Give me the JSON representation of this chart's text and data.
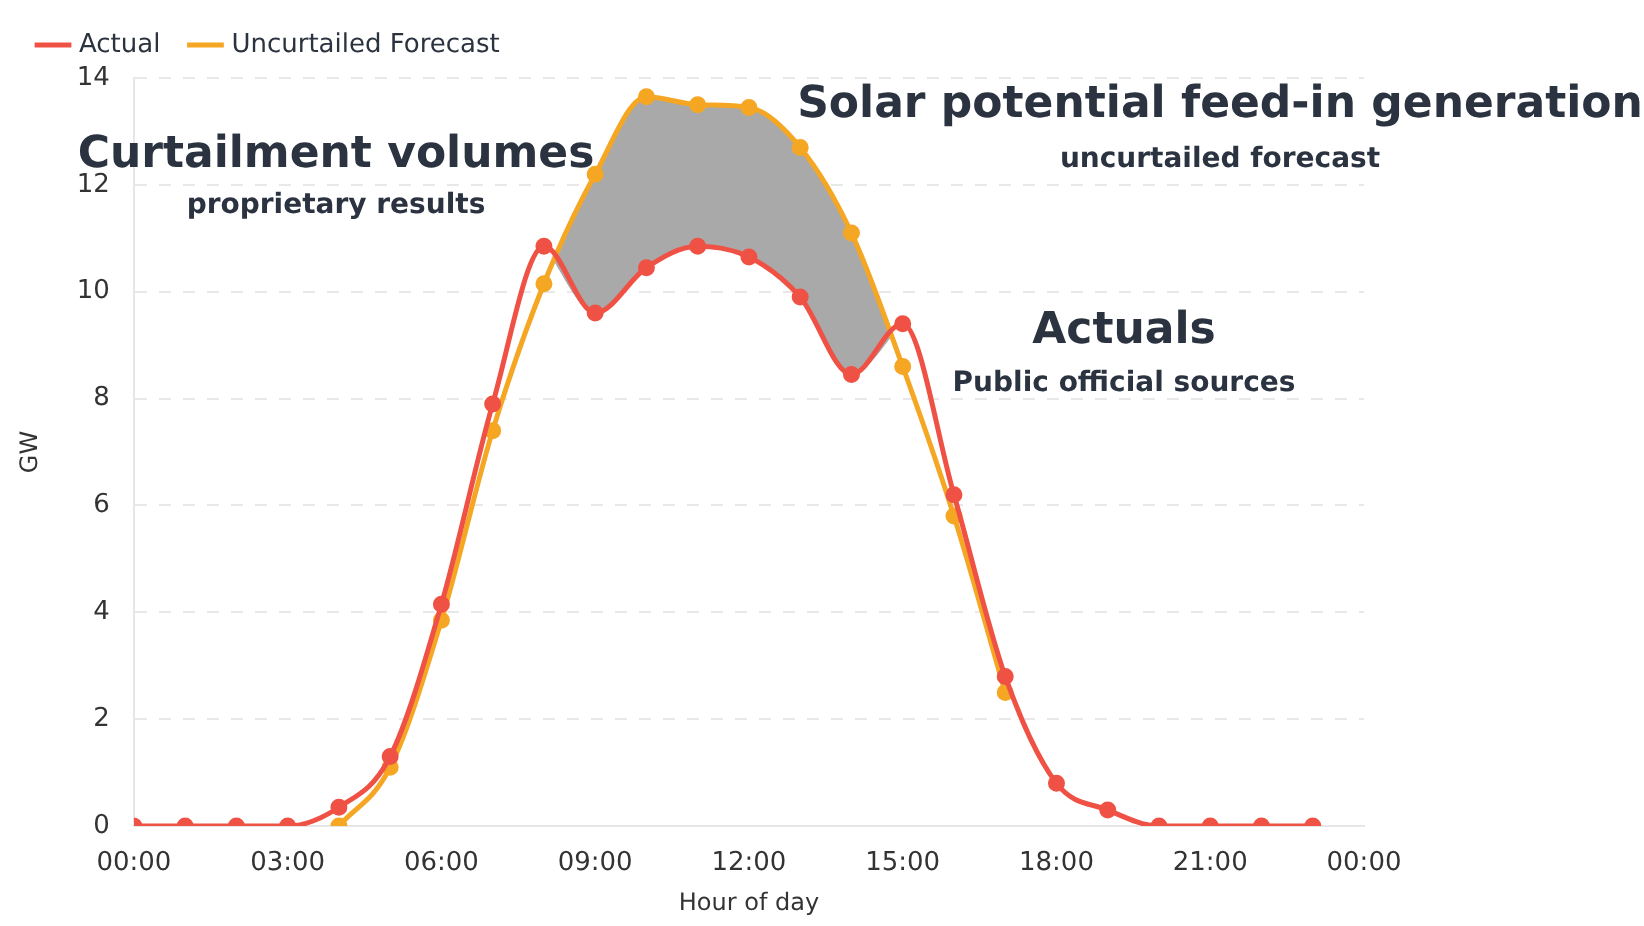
{
  "chart_data": {
    "type": "line",
    "xlabel": "Hour of day",
    "ylabel": "GW",
    "xlim": [
      0,
      24
    ],
    "xticks": [
      {
        "value": 0,
        "label": "00:00"
      },
      {
        "value": 3,
        "label": "03:00"
      },
      {
        "value": 6,
        "label": "06:00"
      },
      {
        "value": 9,
        "label": "09:00"
      },
      {
        "value": 12,
        "label": "12:00"
      },
      {
        "value": 15,
        "label": "15:00"
      },
      {
        "value": 18,
        "label": "18:00"
      },
      {
        "value": 21,
        "label": "21:00"
      },
      {
        "value": 24,
        "label": "00:00"
      }
    ],
    "ylim": [
      0,
      14
    ],
    "yticks": [
      0,
      2,
      4,
      6,
      8,
      10,
      12,
      14
    ],
    "grid": "y",
    "legend": "top left",
    "marker": "circle",
    "line_style": "solid",
    "x": [
      0,
      1,
      2,
      3,
      4,
      5,
      6,
      7,
      8,
      9,
      10,
      11,
      12,
      13,
      14,
      15,
      16,
      17,
      18,
      19,
      20,
      21,
      22,
      23
    ],
    "series": [
      {
        "name": "Actual",
        "color": "#ef5245",
        "values": [
          0,
          0,
          0,
          0,
          0.35,
          1.3,
          4.15,
          7.9,
          10.85,
          9.6,
          10.45,
          10.85,
          10.65,
          9.9,
          8.45,
          9.4,
          6.2,
          2.8,
          0.8,
          0.3,
          0,
          0,
          0,
          0
        ]
      },
      {
        "name": "Uncurtailed Forecast",
        "color": "#f5a623",
        "values": [
          null,
          null,
          null,
          null,
          0,
          1.1,
          3.85,
          7.4,
          10.15,
          12.2,
          13.65,
          13.5,
          13.45,
          12.7,
          11.1,
          8.6,
          5.8,
          2.5,
          null,
          null,
          null,
          null,
          null,
          null
        ],
        "lower": [
          null,
          null,
          null,
          null,
          null,
          null,
          null,
          null,
          10.85,
          9.6,
          10.45,
          10.85,
          10.65,
          9.9,
          8.45,
          9.4,
          null,
          null,
          null,
          null,
          null,
          null,
          null,
          null
        ],
        "upper": [
          null,
          null,
          null,
          null,
          null,
          null,
          null,
          null,
          10.15,
          12.2,
          13.65,
          13.5,
          13.45,
          12.7,
          11.1,
          8.6,
          null,
          null,
          null,
          null,
          null,
          null,
          null,
          null
        ]
      }
    ],
    "annotations": [
      "Curtailment volumes",
      "proprietary results",
      "Solar potential feed-in generation",
      "uncurtailed forecast",
      "Actuals",
      "Public official sources"
    ]
  }
}
